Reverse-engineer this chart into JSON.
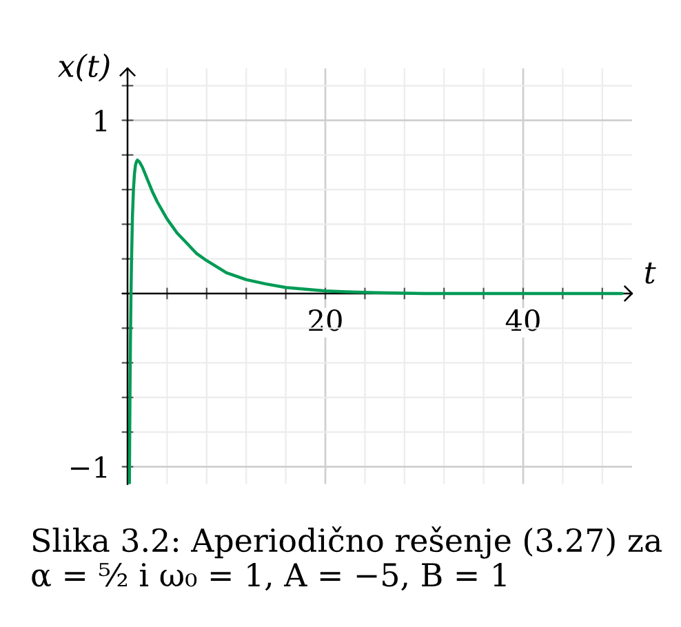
{
  "chart_data": {
    "type": "line",
    "xlabel": "t",
    "ylabel": "x(t)",
    "x": [
      0.19,
      0.25,
      0.3,
      0.35,
      0.4,
      0.5,
      0.6,
      0.7,
      0.8,
      0.9,
      1,
      1.2,
      1.5,
      2,
      2.5,
      3,
      4,
      5,
      6,
      7,
      8,
      10,
      12,
      14,
      16,
      18,
      20,
      22,
      25,
      30,
      40,
      50
    ],
    "series": [
      {
        "color": "#009b55",
        "values": [
          -1.1,
          -0.56,
          -0.25,
          -0.01,
          0.18,
          0.45,
          0.6,
          0.69,
          0.74,
          0.76,
          0.77,
          0.76,
          0.73,
          0.66,
          0.59,
          0.53,
          0.43,
          0.35,
          0.29,
          0.23,
          0.19,
          0.12,
          0.08,
          0.055,
          0.035,
          0.025,
          0.015,
          0.01,
          0.005,
          0,
          0,
          0
        ]
      }
    ],
    "xlim": [
      -0.5,
      51
    ],
    "ylim": [
      -1.1,
      1.3
    ],
    "xticks": [
      {
        "value": 4,
        "label": null
      },
      {
        "value": 8,
        "label": null
      },
      {
        "value": 12,
        "label": null
      },
      {
        "value": 16,
        "label": null
      },
      20,
      {
        "value": 24,
        "label": null
      },
      {
        "value": 28,
        "label": null
      },
      {
        "value": 32,
        "label": null
      },
      {
        "value": 36,
        "label": null
      },
      40,
      {
        "value": 44,
        "label": null
      },
      {
        "value": 48,
        "label": null
      }
    ],
    "yticks": [
      {
        "value": -1,
        "label": "−1"
      },
      {
        "value": -0.8,
        "label": null
      },
      {
        "value": -0.6,
        "label": null
      },
      {
        "value": -0.4,
        "label": null
      },
      {
        "value": -0.2,
        "label": null
      },
      {
        "value": 0.2,
        "label": null
      },
      {
        "value": 0.4,
        "label": null
      },
      {
        "value": 0.6,
        "label": null
      },
      {
        "value": 0.8,
        "label": null
      },
      1,
      {
        "value": 1.2,
        "label": null
      }
    ],
    "grid": true,
    "annotations": [
      "Slika 3.2: Aperiodično rešenje (3.27) za α = ⁵⁄₂ i ω₀ = 1, A = −5, B = 1"
    ]
  }
}
